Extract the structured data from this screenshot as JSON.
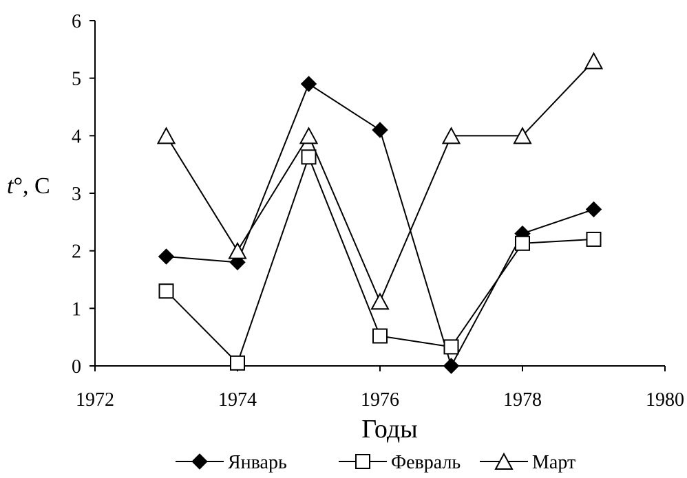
{
  "chart_data": {
    "type": "line",
    "xlabel": "Годы",
    "ylabel_main": "t",
    "ylabel_unit": "°, C",
    "xlim": [
      1972,
      1980
    ],
    "ylim": [
      0,
      6
    ],
    "xticks": [
      1972,
      1974,
      1976,
      1978,
      1980
    ],
    "yticks": [
      0,
      1,
      2,
      3,
      4,
      5,
      6
    ],
    "grid": false,
    "legend_position": "bottom",
    "x": [
      1973,
      1974,
      1975,
      1976,
      1977,
      1978,
      1979
    ],
    "series": [
      {
        "name": "Январь",
        "marker": "diamond-filled",
        "values": [
          1.9,
          1.8,
          4.9,
          4.1,
          0.0,
          2.3,
          2.72
        ]
      },
      {
        "name": "Февраль",
        "marker": "square-open",
        "values": [
          1.3,
          0.05,
          3.63,
          0.52,
          0.33,
          2.13,
          2.2
        ]
      },
      {
        "name": "Март",
        "marker": "triangle-open",
        "values": [
          4.0,
          2.0,
          4.0,
          1.12,
          4.0,
          4.0,
          5.3
        ]
      }
    ]
  }
}
